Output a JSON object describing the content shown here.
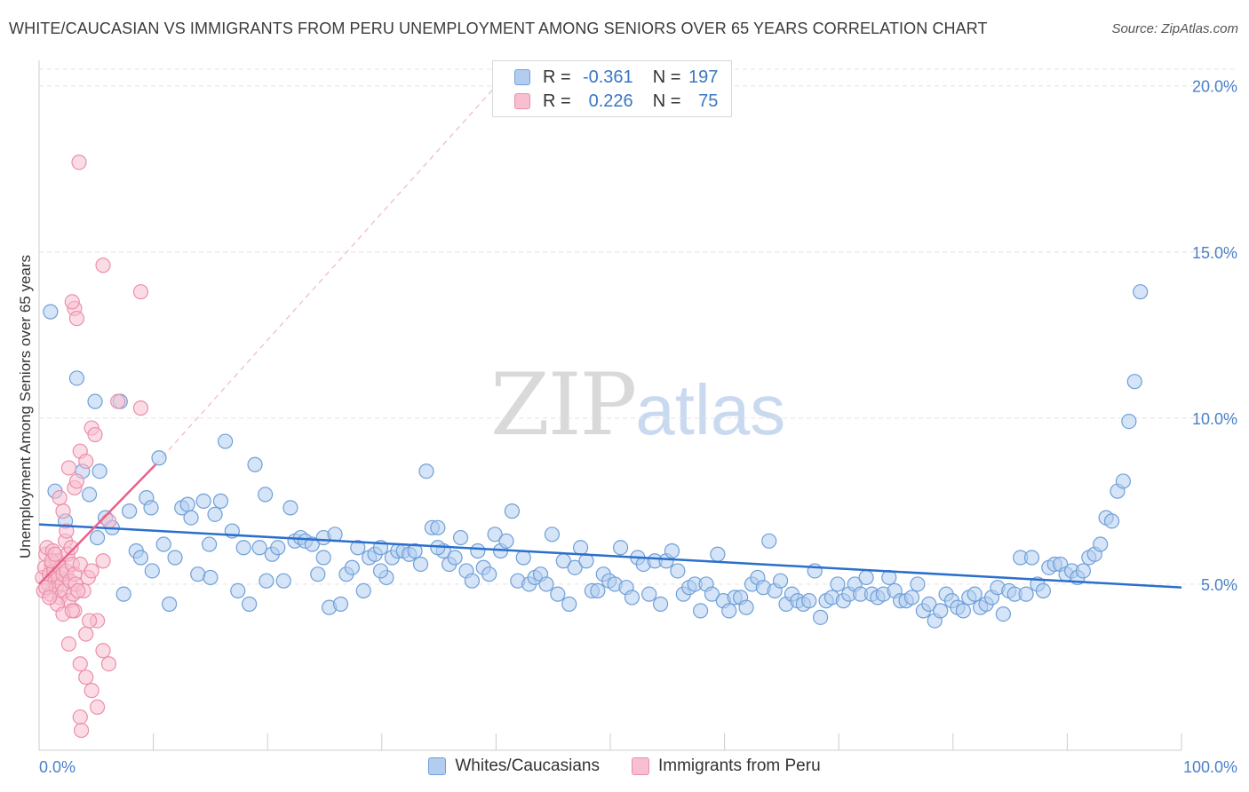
{
  "header": {
    "title": "WHITE/CAUCASIAN VS IMMIGRANTS FROM PERU UNEMPLOYMENT AMONG SENIORS OVER 65 YEARS CORRELATION CHART",
    "source": "Source: ZipAtlas.com"
  },
  "watermark": {
    "zip": "ZIP",
    "atlas": "atlas"
  },
  "legend": {
    "rows": [
      {
        "r_label": "R =",
        "r_value": "-0.361",
        "n_label": "N =",
        "n_value": "197"
      },
      {
        "r_label": "R =",
        "r_value": "0.226",
        "n_label": "N =",
        "n_value": "75"
      }
    ]
  },
  "bottom_legend": {
    "items": [
      {
        "label": "Whites/Caucasians"
      },
      {
        "label": "Immigrants from Peru"
      }
    ]
  },
  "colors": {
    "blue_fill": "#b3cdf0",
    "blue_stroke": "#6f9fd8",
    "blue_line": "#2b6fcc",
    "pink_fill": "#f7bfd0",
    "pink_stroke": "#ec8fab",
    "pink_line": "#e8628a",
    "grid": "#e3e3e3",
    "tick_text": "#4a80c8"
  },
  "chart_data": {
    "type": "scatter",
    "title": "WHITE/CAUCASIAN VS IMMIGRANTS FROM PERU UNEMPLOYMENT AMONG SENIORS OVER 65 YEARS CORRELATION CHART",
    "xlabel": "",
    "ylabel": "Unemployment Among Seniors over 65 years",
    "xlim": [
      0,
      100
    ],
    "ylim": [
      0,
      20.5
    ],
    "x_tick_labels": [
      "0.0%",
      "100.0%"
    ],
    "y_ticks": [
      5,
      10,
      15,
      20
    ],
    "y_tick_labels": [
      "5.0%",
      "10.0%",
      "15.0%",
      "20.0%"
    ],
    "grid": true,
    "legend_position": "top-center",
    "series": [
      {
        "name": "Whites/Caucasians",
        "r": -0.361,
        "n": 197,
        "trend": {
          "x0": 0,
          "y0": 6.8,
          "x1": 100,
          "y1": 4.9
        },
        "points": [
          [
            1.0,
            13.2
          ],
          [
            1.4,
            7.8
          ],
          [
            2.3,
            6.9
          ],
          [
            3.3,
            11.2
          ],
          [
            3.8,
            8.4
          ],
          [
            4.4,
            7.7
          ],
          [
            4.9,
            10.5
          ],
          [
            5.3,
            8.4
          ],
          [
            5.8,
            7.0
          ],
          [
            6.4,
            6.7
          ],
          [
            7.1,
            10.5
          ],
          [
            7.4,
            4.7
          ],
          [
            7.9,
            7.2
          ],
          [
            8.5,
            6.0
          ],
          [
            8.9,
            5.8
          ],
          [
            9.4,
            7.6
          ],
          [
            9.8,
            7.3
          ],
          [
            10.5,
            8.8
          ],
          [
            10.9,
            6.2
          ],
          [
            11.4,
            4.4
          ],
          [
            11.9,
            5.8
          ],
          [
            12.5,
            7.3
          ],
          [
            13.0,
            7.4
          ],
          [
            13.3,
            7.0
          ],
          [
            13.9,
            5.3
          ],
          [
            14.4,
            7.5
          ],
          [
            15.0,
            5.2
          ],
          [
            15.4,
            7.1
          ],
          [
            15.9,
            7.5
          ],
          [
            16.3,
            9.3
          ],
          [
            16.9,
            6.6
          ],
          [
            17.4,
            4.8
          ],
          [
            17.9,
            6.1
          ],
          [
            18.4,
            4.4
          ],
          [
            18.9,
            8.6
          ],
          [
            19.3,
            6.1
          ],
          [
            19.8,
            7.7
          ],
          [
            20.4,
            5.9
          ],
          [
            20.9,
            6.1
          ],
          [
            21.4,
            5.1
          ],
          [
            22.0,
            7.3
          ],
          [
            22.4,
            6.3
          ],
          [
            22.9,
            6.4
          ],
          [
            23.3,
            6.3
          ],
          [
            23.9,
            6.2
          ],
          [
            24.4,
            5.3
          ],
          [
            24.9,
            6.4
          ],
          [
            25.4,
            4.3
          ],
          [
            25.9,
            6.5
          ],
          [
            26.4,
            4.4
          ],
          [
            26.9,
            5.3
          ],
          [
            27.4,
            5.5
          ],
          [
            27.9,
            6.1
          ],
          [
            28.4,
            4.8
          ],
          [
            28.9,
            5.8
          ],
          [
            29.4,
            5.9
          ],
          [
            29.9,
            6.1
          ],
          [
            30.4,
            5.2
          ],
          [
            30.9,
            5.8
          ],
          [
            31.4,
            6.0
          ],
          [
            31.9,
            6.0
          ],
          [
            32.4,
            5.9
          ],
          [
            32.9,
            6.0
          ],
          [
            33.4,
            5.6
          ],
          [
            33.9,
            8.4
          ],
          [
            34.4,
            6.7
          ],
          [
            34.9,
            6.7
          ],
          [
            35.4,
            6.0
          ],
          [
            35.9,
            5.6
          ],
          [
            36.4,
            5.8
          ],
          [
            36.9,
            6.4
          ],
          [
            37.4,
            5.4
          ],
          [
            37.9,
            5.1
          ],
          [
            38.4,
            6.0
          ],
          [
            38.9,
            5.5
          ],
          [
            39.4,
            5.3
          ],
          [
            39.9,
            6.5
          ],
          [
            40.4,
            6.0
          ],
          [
            40.9,
            6.3
          ],
          [
            41.4,
            7.2
          ],
          [
            41.9,
            5.1
          ],
          [
            42.4,
            5.8
          ],
          [
            42.9,
            5.0
          ],
          [
            43.4,
            5.2
          ],
          [
            43.9,
            5.3
          ],
          [
            44.4,
            5.0
          ],
          [
            44.9,
            6.5
          ],
          [
            45.4,
            4.7
          ],
          [
            45.9,
            5.7
          ],
          [
            46.4,
            4.4
          ],
          [
            46.9,
            5.5
          ],
          [
            47.4,
            6.1
          ],
          [
            47.9,
            5.7
          ],
          [
            48.4,
            4.8
          ],
          [
            48.9,
            4.8
          ],
          [
            49.4,
            5.3
          ],
          [
            49.9,
            5.1
          ],
          [
            50.4,
            5.0
          ],
          [
            50.9,
            6.1
          ],
          [
            51.4,
            4.9
          ],
          [
            51.9,
            4.6
          ],
          [
            52.4,
            5.8
          ],
          [
            52.9,
            5.6
          ],
          [
            53.4,
            4.7
          ],
          [
            53.9,
            5.7
          ],
          [
            54.4,
            4.4
          ],
          [
            54.9,
            5.7
          ],
          [
            55.4,
            6.0
          ],
          [
            55.9,
            5.4
          ],
          [
            56.4,
            4.7
          ],
          [
            56.9,
            4.9
          ],
          [
            57.4,
            5.0
          ],
          [
            57.9,
            4.2
          ],
          [
            58.4,
            5.0
          ],
          [
            58.9,
            4.7
          ],
          [
            59.4,
            5.9
          ],
          [
            59.9,
            4.5
          ],
          [
            60.4,
            4.2
          ],
          [
            60.9,
            4.6
          ],
          [
            61.4,
            4.6
          ],
          [
            61.9,
            4.3
          ],
          [
            62.4,
            5.0
          ],
          [
            62.9,
            5.2
          ],
          [
            63.4,
            4.9
          ],
          [
            63.9,
            6.3
          ],
          [
            64.4,
            4.8
          ],
          [
            64.9,
            5.1
          ],
          [
            65.4,
            4.4
          ],
          [
            65.9,
            4.7
          ],
          [
            66.4,
            4.5
          ],
          [
            66.9,
            4.4
          ],
          [
            67.4,
            4.5
          ],
          [
            67.9,
            5.4
          ],
          [
            68.4,
            4.0
          ],
          [
            68.9,
            4.5
          ],
          [
            69.4,
            4.6
          ],
          [
            69.9,
            5.0
          ],
          [
            70.4,
            4.5
          ],
          [
            70.9,
            4.7
          ],
          [
            71.4,
            5.0
          ],
          [
            71.9,
            4.7
          ],
          [
            72.4,
            5.2
          ],
          [
            72.9,
            4.7
          ],
          [
            73.4,
            4.6
          ],
          [
            73.9,
            4.7
          ],
          [
            74.4,
            5.2
          ],
          [
            74.9,
            4.8
          ],
          [
            75.4,
            4.5
          ],
          [
            75.9,
            4.5
          ],
          [
            76.4,
            4.6
          ],
          [
            76.9,
            5.0
          ],
          [
            77.4,
            4.2
          ],
          [
            77.9,
            4.4
          ],
          [
            78.4,
            3.9
          ],
          [
            78.9,
            4.2
          ],
          [
            79.4,
            4.7
          ],
          [
            79.9,
            4.5
          ],
          [
            80.4,
            4.3
          ],
          [
            80.9,
            4.2
          ],
          [
            81.4,
            4.6
          ],
          [
            81.9,
            4.7
          ],
          [
            82.4,
            4.3
          ],
          [
            82.9,
            4.4
          ],
          [
            83.4,
            4.6
          ],
          [
            83.9,
            4.9
          ],
          [
            84.4,
            4.1
          ],
          [
            84.9,
            4.8
          ],
          [
            85.4,
            4.7
          ],
          [
            85.9,
            5.8
          ],
          [
            86.4,
            4.7
          ],
          [
            86.9,
            5.8
          ],
          [
            87.4,
            5.0
          ],
          [
            87.9,
            4.8
          ],
          [
            88.4,
            5.5
          ],
          [
            88.9,
            5.6
          ],
          [
            89.4,
            5.6
          ],
          [
            89.9,
            5.3
          ],
          [
            90.4,
            5.4
          ],
          [
            90.9,
            5.2
          ],
          [
            91.4,
            5.4
          ],
          [
            91.9,
            5.8
          ],
          [
            92.4,
            5.9
          ],
          [
            92.9,
            6.2
          ],
          [
            93.4,
            7.0
          ],
          [
            93.9,
            6.9
          ],
          [
            94.4,
            7.8
          ],
          [
            94.9,
            8.1
          ],
          [
            95.4,
            9.9
          ],
          [
            95.9,
            11.1
          ],
          [
            96.4,
            13.8
          ],
          [
            5.1,
            6.4
          ],
          [
            9.9,
            5.4
          ],
          [
            14.9,
            6.2
          ],
          [
            19.9,
            5.1
          ],
          [
            24.9,
            5.8
          ],
          [
            29.9,
            5.4
          ],
          [
            34.9,
            6.1
          ]
        ]
      },
      {
        "name": "Immigrants from Peru",
        "r": 0.226,
        "n": 75,
        "trend": {
          "x0": 0,
          "y0": 5.0,
          "x1": 10.2,
          "y1": 8.6
        },
        "trend_extension": {
          "x0": 10.2,
          "y0": 8.6,
          "x1": 40,
          "y1": 20.0
        },
        "points": [
          [
            0.3,
            5.2
          ],
          [
            0.4,
            4.8
          ],
          [
            0.5,
            5.5
          ],
          [
            0.6,
            5.9
          ],
          [
            0.7,
            6.1
          ],
          [
            0.8,
            5.0
          ],
          [
            0.9,
            5.3
          ],
          [
            1.0,
            4.7
          ],
          [
            1.1,
            5.6
          ],
          [
            1.2,
            6.0
          ],
          [
            1.3,
            5.4
          ],
          [
            1.4,
            5.1
          ],
          [
            1.5,
            4.9
          ],
          [
            1.6,
            5.7
          ],
          [
            1.7,
            5.2
          ],
          [
            1.8,
            4.6
          ],
          [
            1.9,
            5.5
          ],
          [
            2.0,
            5.0
          ],
          [
            2.1,
            5.3
          ],
          [
            2.2,
            4.8
          ],
          [
            2.3,
            6.3
          ],
          [
            2.4,
            5.4
          ],
          [
            2.5,
            5.9
          ],
          [
            2.6,
            4.5
          ],
          [
            2.7,
            5.1
          ],
          [
            2.8,
            6.1
          ],
          [
            2.9,
            5.6
          ],
          [
            3.0,
            4.7
          ],
          [
            3.1,
            5.3
          ],
          [
            3.2,
            5.0
          ],
          [
            0.6,
            4.9
          ],
          [
            1.1,
            5.7
          ],
          [
            1.6,
            4.4
          ],
          [
            2.1,
            7.2
          ],
          [
            2.6,
            8.5
          ],
          [
            3.1,
            7.9
          ],
          [
            3.6,
            9.0
          ],
          [
            4.1,
            8.7
          ],
          [
            4.6,
            9.7
          ],
          [
            4.9,
            9.5
          ],
          [
            1.8,
            7.6
          ],
          [
            2.4,
            6.6
          ],
          [
            3.3,
            8.1
          ],
          [
            3.6,
            5.6
          ],
          [
            3.9,
            4.8
          ],
          [
            4.3,
            5.2
          ],
          [
            4.6,
            5.4
          ],
          [
            5.1,
            3.9
          ],
          [
            5.6,
            5.7
          ],
          [
            6.1,
            6.9
          ],
          [
            2.6,
            3.2
          ],
          [
            3.1,
            4.2
          ],
          [
            3.4,
            4.8
          ],
          [
            3.6,
            2.6
          ],
          [
            4.1,
            3.5
          ],
          [
            4.4,
            3.9
          ],
          [
            4.6,
            1.8
          ],
          [
            5.1,
            1.3
          ],
          [
            5.6,
            3.0
          ],
          [
            6.1,
            2.6
          ],
          [
            3.6,
            1.0
          ],
          [
            3.7,
            0.6
          ],
          [
            4.1,
            2.2
          ],
          [
            3.1,
            13.3
          ],
          [
            3.3,
            13.0
          ],
          [
            3.5,
            17.7
          ],
          [
            5.6,
            14.6
          ],
          [
            8.9,
            13.8
          ],
          [
            2.9,
            13.5
          ],
          [
            6.9,
            10.5
          ],
          [
            8.9,
            10.3
          ],
          [
            0.9,
            4.6
          ],
          [
            2.1,
            4.1
          ],
          [
            1.4,
            5.9
          ],
          [
            2.9,
            4.2
          ]
        ]
      }
    ]
  }
}
